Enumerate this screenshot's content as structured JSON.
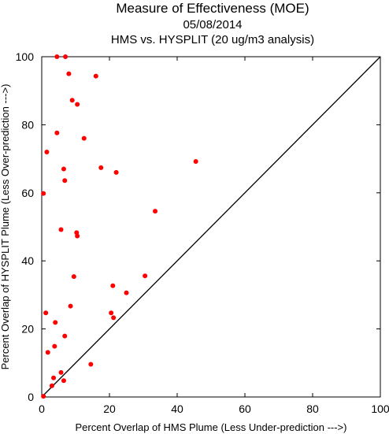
{
  "chart_data": {
    "type": "scatter",
    "title": "Measure of Effectiveness (MOE)",
    "date": "05/08/2014",
    "subtitle": "HMS vs. HYSPLIT  (20 ug/m3 analysis)",
    "xlabel": "Percent Overlap of HMS Plume (Less Under-prediction --->)",
    "ylabel": "Percent Overlap of HYSPLIT Plume (Less Over-prediction --->)",
    "xlim": [
      0,
      100
    ],
    "ylim": [
      0,
      100
    ],
    "xticks": [
      "0",
      "20",
      "40",
      "60",
      "80",
      "100"
    ],
    "yticks": [
      "0",
      "20",
      "40",
      "60",
      "80",
      "100"
    ],
    "grid": false,
    "reference_line": "y = x",
    "marker_color": "#ff0000",
    "line_color": "#000000",
    "points": [
      {
        "x": 4.5,
        "y": 100
      },
      {
        "x": 7.0,
        "y": 100
      },
      {
        "x": 8.0,
        "y": 95
      },
      {
        "x": 16.0,
        "y": 94.3
      },
      {
        "x": 9.0,
        "y": 87.2
      },
      {
        "x": 10.5,
        "y": 86
      },
      {
        "x": 4.5,
        "y": 77.6
      },
      {
        "x": 12.5,
        "y": 76
      },
      {
        "x": 1.5,
        "y": 72
      },
      {
        "x": 45.5,
        "y": 69.2
      },
      {
        "x": 17.5,
        "y": 67.4
      },
      {
        "x": 6.5,
        "y": 67
      },
      {
        "x": 22.0,
        "y": 66
      },
      {
        "x": 6.8,
        "y": 63.6
      },
      {
        "x": 0.5,
        "y": 59.8
      },
      {
        "x": 33.5,
        "y": 54.6
      },
      {
        "x": 5.7,
        "y": 49.2
      },
      {
        "x": 10.3,
        "y": 48.3
      },
      {
        "x": 10.5,
        "y": 47.3
      },
      {
        "x": 9.5,
        "y": 35.4
      },
      {
        "x": 30.5,
        "y": 35.6
      },
      {
        "x": 21.0,
        "y": 32.7
      },
      {
        "x": 25.0,
        "y": 30.6
      },
      {
        "x": 8.5,
        "y": 26.7
      },
      {
        "x": 1.2,
        "y": 24.7
      },
      {
        "x": 20.5,
        "y": 24.7
      },
      {
        "x": 21.2,
        "y": 23.3
      },
      {
        "x": 4.0,
        "y": 21.9
      },
      {
        "x": 6.8,
        "y": 17.9
      },
      {
        "x": 3.8,
        "y": 14.9
      },
      {
        "x": 1.8,
        "y": 13.1
      },
      {
        "x": 14.5,
        "y": 9.6
      },
      {
        "x": 5.7,
        "y": 7.2
      },
      {
        "x": 3.5,
        "y": 5.6
      },
      {
        "x": 6.5,
        "y": 4.8
      },
      {
        "x": 3.0,
        "y": 3.3
      },
      {
        "x": 0.5,
        "y": 0.2
      }
    ]
  }
}
